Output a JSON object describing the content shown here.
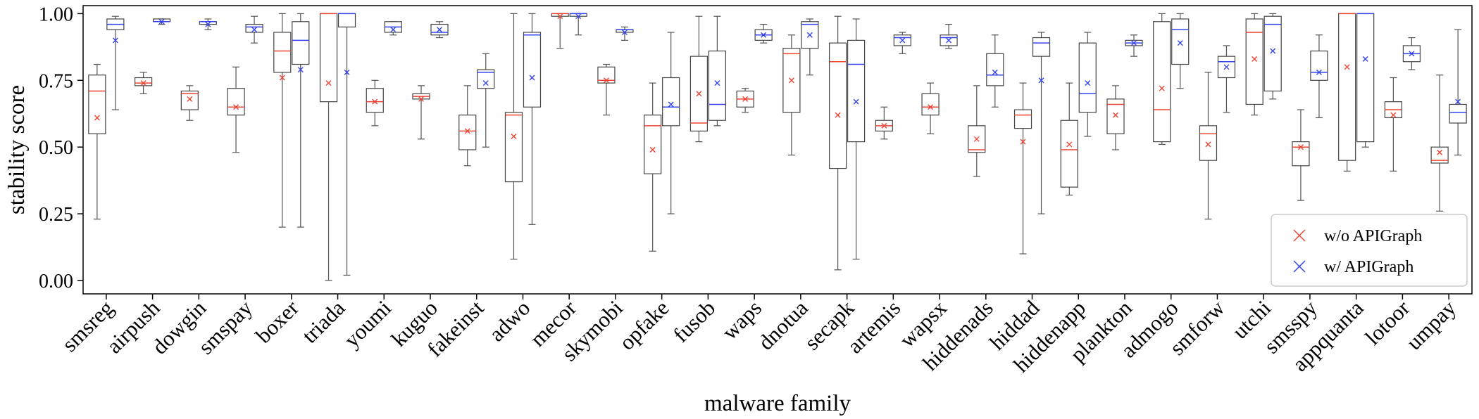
{
  "chart_data": {
    "type": "box",
    "title": "",
    "xlabel": "malware family",
    "ylabel": "stability score",
    "ylim": [
      -0.05,
      1.03
    ],
    "yticks": [
      "0.00",
      "0.25",
      "0.50",
      "0.75",
      "1.00"
    ],
    "grid": false,
    "legend_position": "bottom-right",
    "legend": [
      {
        "label": "w/o APIGraph",
        "color": "#ee4433"
      },
      {
        "label": "w/ APIGraph",
        "color": "#3344ee"
      }
    ],
    "categories": [
      "smsreg",
      "airpush",
      "dowgin",
      "smspay",
      "boxer",
      "triada",
      "youmi",
      "kuguo",
      "fakeinst",
      "adwo",
      "mecor",
      "skymobi",
      "opfake",
      "fusob",
      "waps",
      "dnotua",
      "secapk",
      "artemis",
      "wapsx",
      "hiddenads",
      "hiddad",
      "hiddenapp",
      "plankton",
      "admogo",
      "smforw",
      "utchi",
      "smsspy",
      "appquanta",
      "lotoor",
      "umpay"
    ],
    "series": [
      {
        "name": "w/o APIGraph",
        "color": "#ee4433",
        "boxes": [
          {
            "min": 0.23,
            "q1": 0.55,
            "median": 0.71,
            "q3": 0.77,
            "max": 0.81,
            "mean": 0.61
          },
          {
            "min": 0.7,
            "q1": 0.73,
            "median": 0.74,
            "q3": 0.76,
            "max": 0.78,
            "mean": 0.74
          },
          {
            "min": 0.6,
            "q1": 0.64,
            "median": 0.7,
            "q3": 0.71,
            "max": 0.73,
            "mean": 0.68
          },
          {
            "min": 0.48,
            "q1": 0.62,
            "median": 0.65,
            "q3": 0.72,
            "max": 0.8,
            "mean": 0.65
          },
          {
            "min": 0.2,
            "q1": 0.78,
            "median": 0.86,
            "q3": 0.93,
            "max": 1.0,
            "mean": 0.76
          },
          {
            "min": 0.0,
            "q1": 0.67,
            "median": 1.0,
            "q3": 1.0,
            "max": 1.0,
            "mean": 0.74
          },
          {
            "min": 0.58,
            "q1": 0.63,
            "median": 0.67,
            "q3": 0.72,
            "max": 0.75,
            "mean": 0.67
          },
          {
            "min": 0.53,
            "q1": 0.68,
            "median": 0.69,
            "q3": 0.7,
            "max": 0.73,
            "mean": 0.68
          },
          {
            "min": 0.43,
            "q1": 0.49,
            "median": 0.56,
            "q3": 0.62,
            "max": 0.73,
            "mean": 0.56
          },
          {
            "min": 0.08,
            "q1": 0.37,
            "median": 0.62,
            "q3": 0.63,
            "max": 1.0,
            "mean": 0.54
          },
          {
            "min": 0.87,
            "q1": 0.99,
            "median": 1.0,
            "q3": 1.0,
            "max": 1.0,
            "mean": 0.99
          },
          {
            "min": 0.62,
            "q1": 0.74,
            "median": 0.75,
            "q3": 0.8,
            "max": 0.81,
            "mean": 0.75
          },
          {
            "min": 0.11,
            "q1": 0.4,
            "median": 0.58,
            "q3": 0.62,
            "max": 0.74,
            "mean": 0.49
          },
          {
            "min": 0.52,
            "q1": 0.56,
            "median": 0.59,
            "q3": 0.84,
            "max": 0.99,
            "mean": 0.7
          },
          {
            "min": 0.63,
            "q1": 0.65,
            "median": 0.68,
            "q3": 0.71,
            "max": 0.72,
            "mean": 0.68
          },
          {
            "min": 0.47,
            "q1": 0.63,
            "median": 0.85,
            "q3": 0.87,
            "max": 0.92,
            "mean": 0.75
          },
          {
            "min": 0.04,
            "q1": 0.42,
            "median": 0.82,
            "q3": 0.89,
            "max": 0.99,
            "mean": 0.62
          },
          {
            "min": 0.53,
            "q1": 0.56,
            "median": 0.58,
            "q3": 0.6,
            "max": 0.65,
            "mean": 0.58
          },
          {
            "min": 0.55,
            "q1": 0.62,
            "median": 0.65,
            "q3": 0.7,
            "max": 0.74,
            "mean": 0.65
          },
          {
            "min": 0.39,
            "q1": 0.48,
            "median": 0.49,
            "q3": 0.58,
            "max": 0.73,
            "mean": 0.53
          },
          {
            "min": 0.1,
            "q1": 0.57,
            "median": 0.62,
            "q3": 0.64,
            "max": 0.74,
            "mean": 0.52
          },
          {
            "min": 0.32,
            "q1": 0.35,
            "median": 0.49,
            "q3": 0.6,
            "max": 0.74,
            "mean": 0.51
          },
          {
            "min": 0.49,
            "q1": 0.55,
            "median": 0.66,
            "q3": 0.68,
            "max": 0.73,
            "mean": 0.62
          },
          {
            "min": 0.51,
            "q1": 0.52,
            "median": 0.64,
            "q3": 0.97,
            "max": 1.0,
            "mean": 0.72
          },
          {
            "min": 0.23,
            "q1": 0.45,
            "median": 0.55,
            "q3": 0.58,
            "max": 0.78,
            "mean": 0.51
          },
          {
            "min": 0.62,
            "q1": 0.66,
            "median": 0.93,
            "q3": 0.98,
            "max": 1.0,
            "mean": 0.83
          },
          {
            "min": 0.3,
            "q1": 0.43,
            "median": 0.5,
            "q3": 0.52,
            "max": 0.64,
            "mean": 0.5
          },
          {
            "min": 0.41,
            "q1": 0.45,
            "median": 1.0,
            "q3": 1.0,
            "max": 1.0,
            "mean": 0.8
          },
          {
            "min": 0.41,
            "q1": 0.61,
            "median": 0.64,
            "q3": 0.67,
            "max": 0.76,
            "mean": 0.62
          },
          {
            "min": 0.26,
            "q1": 0.44,
            "median": 0.45,
            "q3": 0.5,
            "max": 0.77,
            "mean": 0.48
          }
        ]
      },
      {
        "name": "w/ APIGraph",
        "color": "#3344ee",
        "boxes": [
          {
            "min": 0.64,
            "q1": 0.94,
            "median": 0.96,
            "q3": 0.98,
            "max": 0.99,
            "mean": 0.9
          },
          {
            "min": 0.96,
            "q1": 0.97,
            "median": 0.97,
            "q3": 0.98,
            "max": 0.98,
            "mean": 0.97
          },
          {
            "min": 0.94,
            "q1": 0.96,
            "median": 0.97,
            "q3": 0.97,
            "max": 0.98,
            "mean": 0.96
          },
          {
            "min": 0.89,
            "q1": 0.93,
            "median": 0.95,
            "q3": 0.96,
            "max": 0.99,
            "mean": 0.94
          },
          {
            "min": 0.2,
            "q1": 0.81,
            "median": 0.9,
            "q3": 0.97,
            "max": 1.0,
            "mean": 0.79
          },
          {
            "min": 0.02,
            "q1": 0.95,
            "median": 1.0,
            "q3": 1.0,
            "max": 1.0,
            "mean": 0.78
          },
          {
            "min": 0.92,
            "q1": 0.93,
            "median": 0.95,
            "q3": 0.97,
            "max": 0.97,
            "mean": 0.94
          },
          {
            "min": 0.91,
            "q1": 0.92,
            "median": 0.93,
            "q3": 0.96,
            "max": 0.97,
            "mean": 0.94
          },
          {
            "min": 0.5,
            "q1": 0.72,
            "median": 0.78,
            "q3": 0.79,
            "max": 0.85,
            "mean": 0.74
          },
          {
            "min": 0.21,
            "q1": 0.65,
            "median": 0.92,
            "q3": 0.93,
            "max": 1.0,
            "mean": 0.76
          },
          {
            "min": 0.92,
            "q1": 0.99,
            "median": 1.0,
            "q3": 1.0,
            "max": 1.0,
            "mean": 0.99
          },
          {
            "min": 0.9,
            "q1": 0.93,
            "median": 0.94,
            "q3": 0.94,
            "max": 0.95,
            "mean": 0.93
          },
          {
            "min": 0.25,
            "q1": 0.58,
            "median": 0.65,
            "q3": 0.76,
            "max": 0.93,
            "mean": 0.66
          },
          {
            "min": 0.58,
            "q1": 0.6,
            "median": 0.66,
            "q3": 0.86,
            "max": 0.99,
            "mean": 0.74
          },
          {
            "min": 0.89,
            "q1": 0.9,
            "median": 0.92,
            "q3": 0.94,
            "max": 0.96,
            "mean": 0.92
          },
          {
            "min": 0.77,
            "q1": 0.87,
            "median": 0.96,
            "q3": 0.97,
            "max": 0.98,
            "mean": 0.92
          },
          {
            "min": 0.08,
            "q1": 0.52,
            "median": 0.81,
            "q3": 0.9,
            "max": 0.98,
            "mean": 0.67
          },
          {
            "min": 0.85,
            "q1": 0.88,
            "median": 0.91,
            "q3": 0.92,
            "max": 0.93,
            "mean": 0.9
          },
          {
            "min": 0.87,
            "q1": 0.88,
            "median": 0.91,
            "q3": 0.92,
            "max": 0.96,
            "mean": 0.9
          },
          {
            "min": 0.65,
            "q1": 0.73,
            "median": 0.77,
            "q3": 0.85,
            "max": 0.92,
            "mean": 0.78
          },
          {
            "min": 0.25,
            "q1": 0.84,
            "median": 0.89,
            "q3": 0.91,
            "max": 0.93,
            "mean": 0.75
          },
          {
            "min": 0.54,
            "q1": 0.63,
            "median": 0.7,
            "q3": 0.89,
            "max": 0.93,
            "mean": 0.74
          },
          {
            "min": 0.84,
            "q1": 0.88,
            "median": 0.89,
            "q3": 0.9,
            "max": 0.92,
            "mean": 0.89
          },
          {
            "min": 0.72,
            "q1": 0.81,
            "median": 0.94,
            "q3": 0.98,
            "max": 1.0,
            "mean": 0.89
          },
          {
            "min": 0.63,
            "q1": 0.76,
            "median": 0.82,
            "q3": 0.84,
            "max": 0.88,
            "mean": 0.8
          },
          {
            "min": 0.68,
            "q1": 0.71,
            "median": 0.96,
            "q3": 0.99,
            "max": 1.0,
            "mean": 0.86
          },
          {
            "min": 0.61,
            "q1": 0.75,
            "median": 0.78,
            "q3": 0.86,
            "max": 0.92,
            "mean": 0.78
          },
          {
            "min": 0.5,
            "q1": 0.52,
            "median": 1.0,
            "q3": 1.0,
            "max": 1.0,
            "mean": 0.83
          },
          {
            "min": 0.79,
            "q1": 0.82,
            "median": 0.85,
            "q3": 0.88,
            "max": 0.91,
            "mean": 0.85
          },
          {
            "min": 0.47,
            "q1": 0.59,
            "median": 0.63,
            "q3": 0.66,
            "max": 0.94,
            "mean": 0.67
          }
        ]
      }
    ]
  }
}
